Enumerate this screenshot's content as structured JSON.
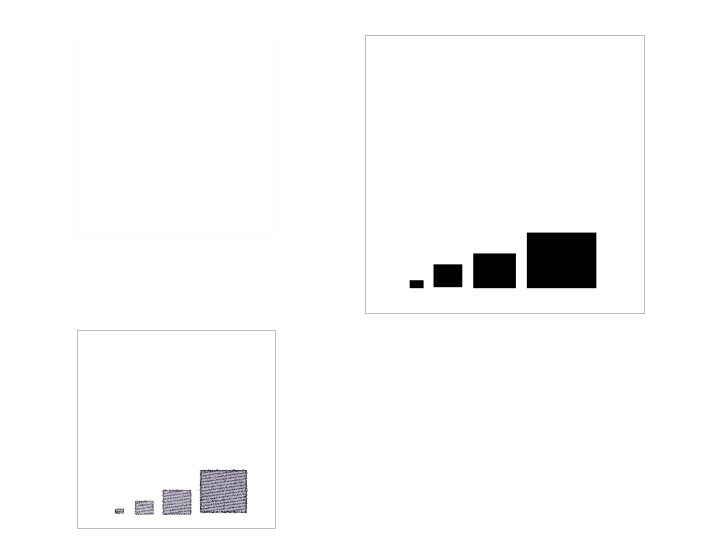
{
  "figure": {
    "colors": {
      "solid_squares": "#000000",
      "pencil_squares": "#3a3346",
      "panel_border": "#bdbdbd",
      "faint_border": "#fafafa"
    },
    "series_relative_sizes": [
      1,
      2,
      3,
      4
    ]
  }
}
